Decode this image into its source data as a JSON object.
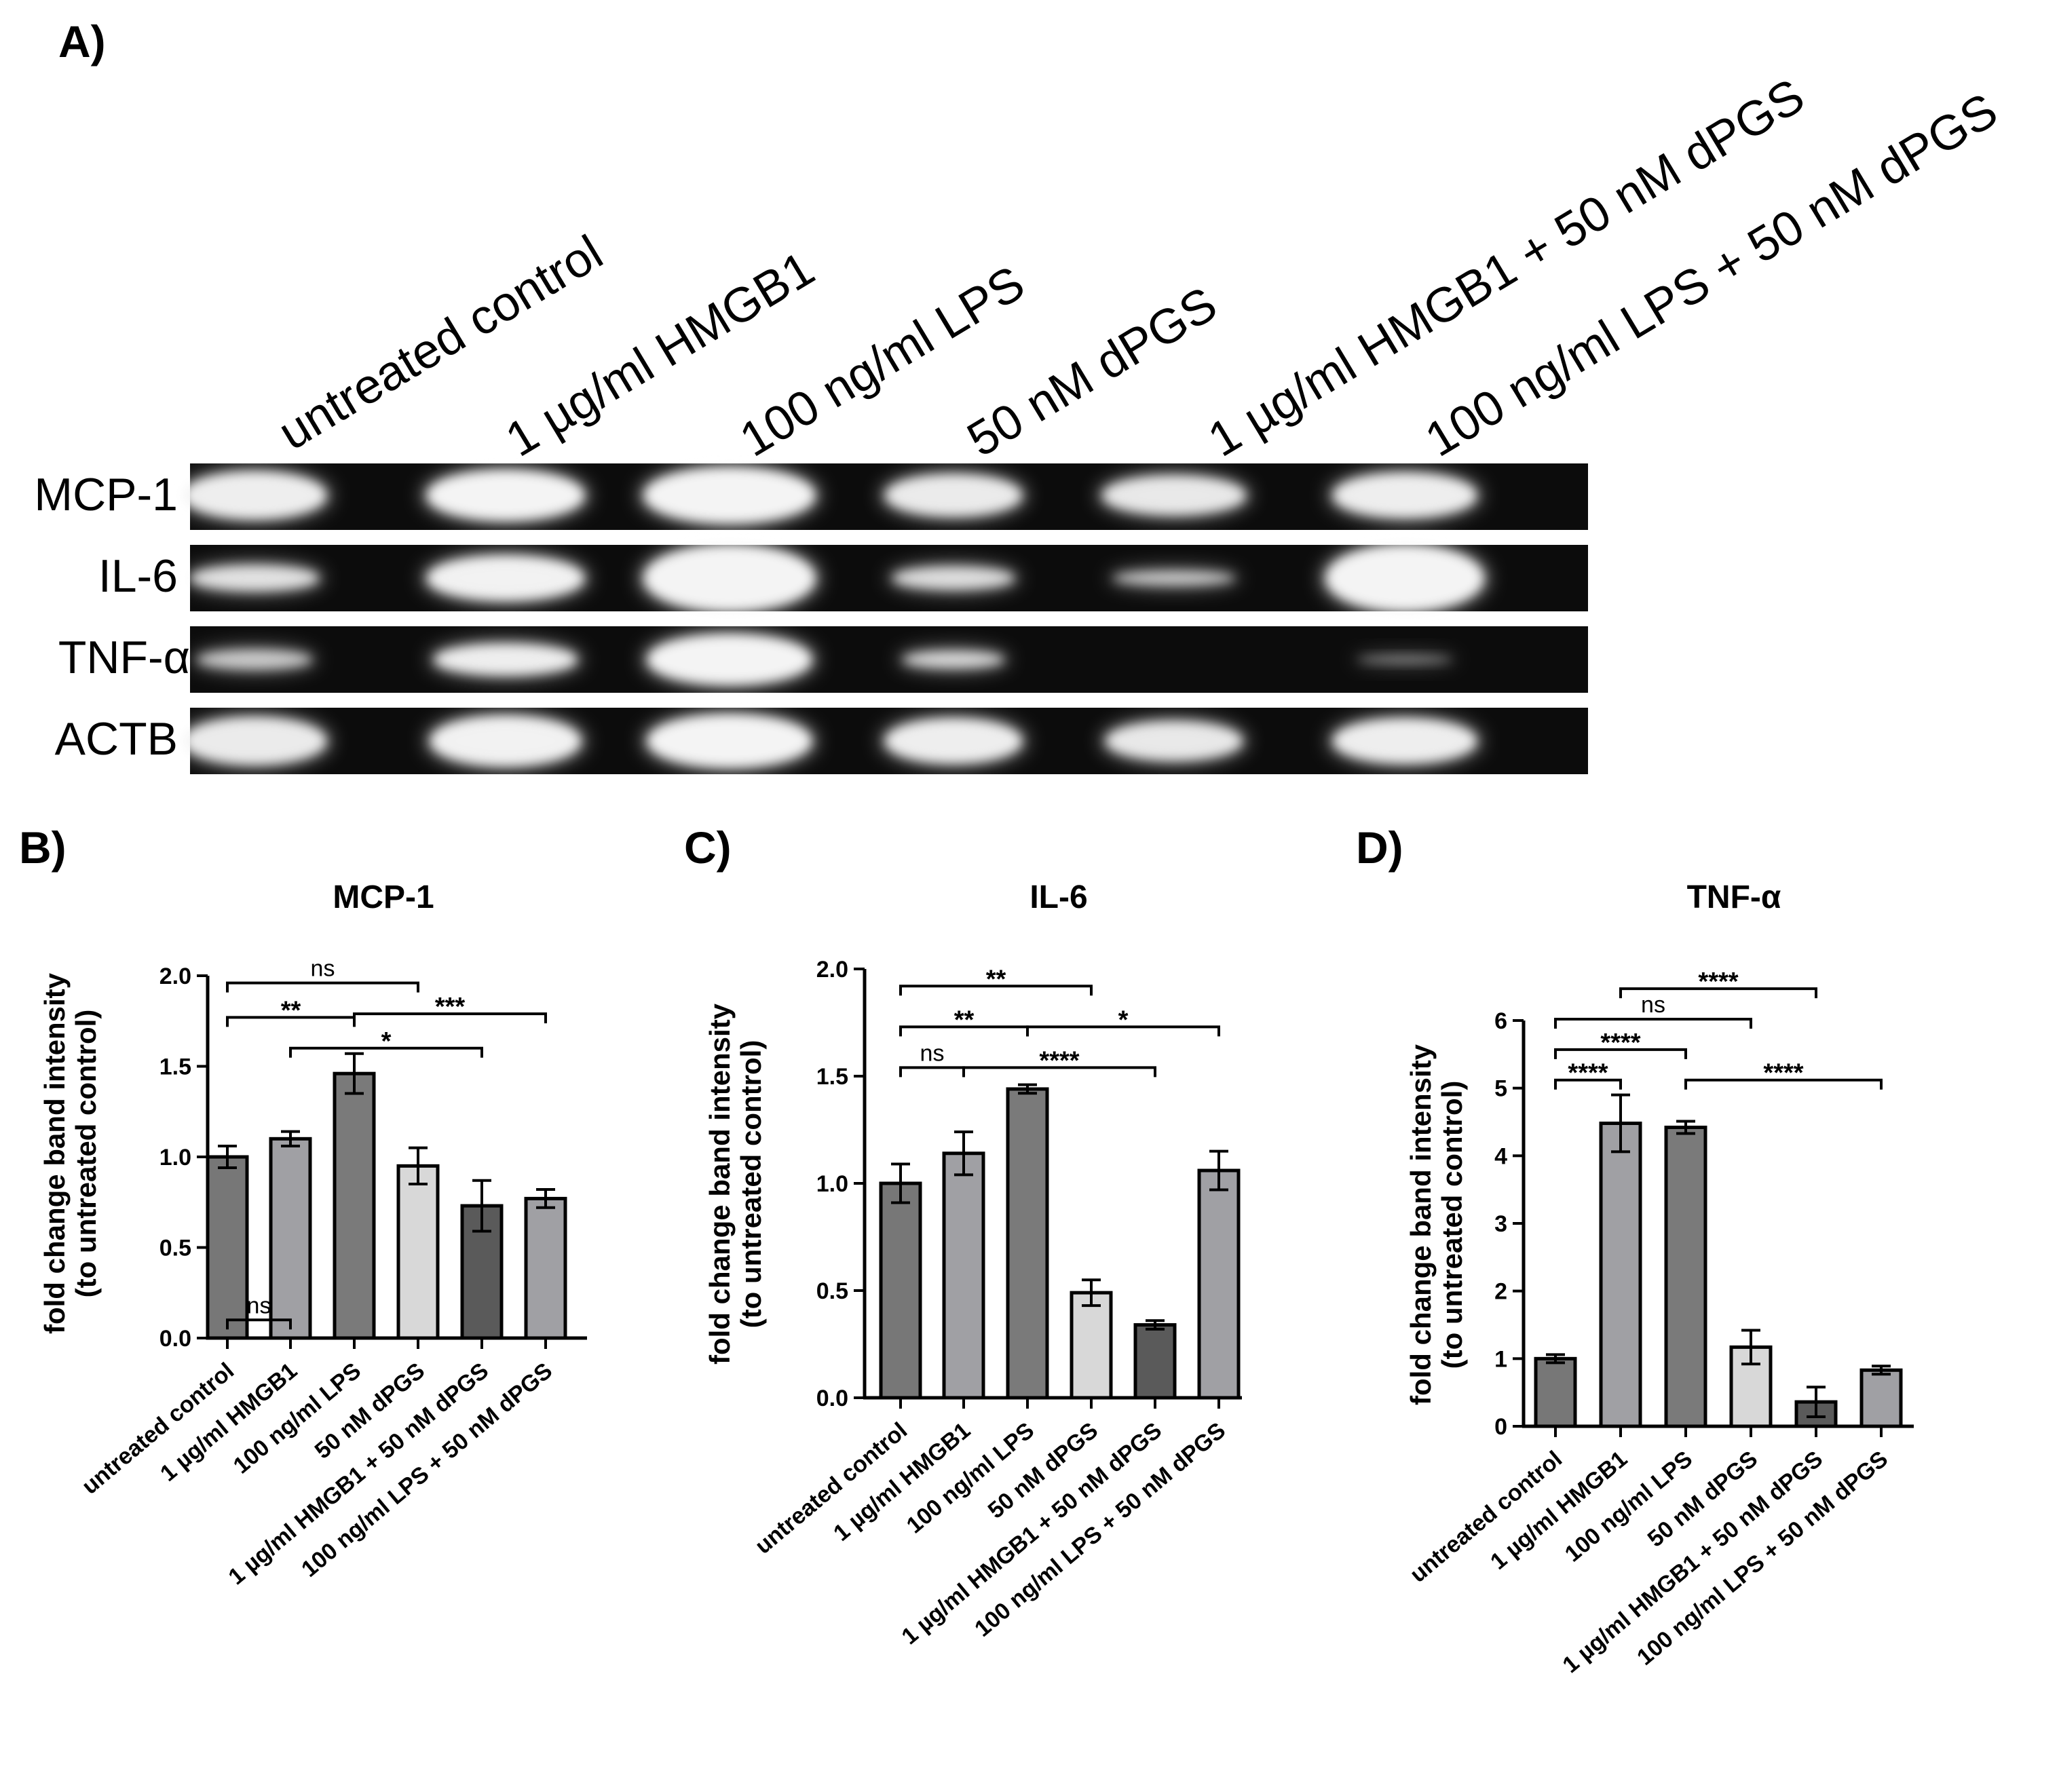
{
  "panel_a": {
    "label": "A)",
    "lanes": [
      "untreated control",
      "1 µg/ml HMGB1",
      "100 ng/ml LPS",
      "50 nM dPGS",
      "1 µg/ml HMGB1 + 50 nM dPGS",
      "100 ng/ml LPS + 50 nM dPGS"
    ],
    "genes": [
      "MCP-1",
      "IL-6",
      "TNF-α",
      "ACTB"
    ]
  },
  "chart_data": [
    {
      "panel_label": "B)",
      "type": "bar",
      "title": "MCP-1",
      "ylabel": [
        "fold change band intensity",
        "(to untreated control)"
      ],
      "xlabel": "",
      "categories": [
        "untreated control",
        "1 µg/ml HMGB1",
        "100 ng/ml LPS",
        "50 nM dPGS",
        "1 µg/ml HMGB1 + 50 nM dPGS",
        "100 ng/ml LPS + 50 nM dPGS"
      ],
      "values": [
        1.0,
        1.1,
        1.46,
        0.95,
        0.73,
        0.77
      ],
      "errors": [
        0.06,
        0.04,
        0.11,
        0.1,
        0.14,
        0.05
      ],
      "ylim": [
        0,
        2.0
      ],
      "yticks": [
        "0.0",
        "0.5",
        "1.0",
        "1.5",
        "2.0"
      ],
      "yticks_values": [
        0,
        0.5,
        1.0,
        1.5,
        2.0
      ],
      "bar_colors": [
        "#777777",
        "#a0a0a4",
        "#7a7a7a",
        "#d8d8d8",
        "#5a5a5a",
        "#a0a0a4"
      ],
      "comparisons": [
        {
          "from": 0,
          "to": 1,
          "label": "ns",
          "level": 0.1
        },
        {
          "from": 0,
          "to": 2,
          "label": "**",
          "level": 1.77
        },
        {
          "from": 0,
          "to": 3,
          "label": "ns",
          "level": 1.96
        },
        {
          "from": 1,
          "to": 4,
          "label": "*",
          "level": 1.6
        },
        {
          "from": 2,
          "to": 5,
          "label": "***",
          "level": 1.79
        }
      ]
    },
    {
      "panel_label": "C)",
      "type": "bar",
      "title": "IL-6",
      "ylabel": [
        "fold change band intensity",
        "(to untreated control)"
      ],
      "xlabel": "",
      "categories": [
        "untreated control",
        "1 µg/ml HMGB1",
        "100 ng/ml LPS",
        "50 nM dPGS",
        "1 µg/ml HMGB1 + 50 nM dPGS",
        "100 ng/ml LPS + 50 nM dPGS"
      ],
      "values": [
        1.0,
        1.14,
        1.44,
        0.49,
        0.34,
        1.06
      ],
      "errors": [
        0.09,
        0.1,
        0.02,
        0.06,
        0.02,
        0.09
      ],
      "ylim": [
        0,
        2.0
      ],
      "yticks": [
        "0.0",
        "0.5",
        "1.0",
        "1.5",
        "2.0"
      ],
      "yticks_values": [
        0,
        0.5,
        1.0,
        1.5,
        2.0
      ],
      "bar_colors": [
        "#777777",
        "#a0a0a4",
        "#7a7a7a",
        "#d8d8d8",
        "#5a5a5a",
        "#a0a0a4"
      ],
      "comparisons": [
        {
          "from": 0,
          "to": 1,
          "label": "ns",
          "level": 1.54
        },
        {
          "from": 0,
          "to": 2,
          "label": "**",
          "level": 1.73
        },
        {
          "from": 0,
          "to": 3,
          "label": "**",
          "level": 1.92
        },
        {
          "from": 1,
          "to": 4,
          "label": "****",
          "level": 1.54
        },
        {
          "from": 2,
          "to": 5,
          "label": "*",
          "level": 1.73
        }
      ]
    },
    {
      "panel_label": "D)",
      "type": "bar",
      "title": "TNF-α",
      "ylabel": [
        "fold change band intensity",
        "(to untreated control)"
      ],
      "xlabel": "",
      "categories": [
        "untreated control",
        "1 µg/ml HMGB1",
        "100 ng/ml LPS",
        "50 nM dPGS",
        "1 µg/ml HMGB1 + 50 nM dPGS",
        "100 ng/ml LPS + 50 nM dPGS"
      ],
      "values": [
        1.0,
        4.48,
        4.42,
        1.17,
        0.36,
        0.83
      ],
      "errors": [
        0.06,
        0.42,
        0.09,
        0.25,
        0.22,
        0.06
      ],
      "ylim": [
        0,
        6
      ],
      "yticks": [
        "0",
        "1",
        "2",
        "3",
        "4",
        "5",
        "6"
      ],
      "yticks_values": [
        0,
        1,
        2,
        3,
        4,
        5,
        6
      ],
      "bar_colors": [
        "#777777",
        "#a0a0a4",
        "#7a7a7a",
        "#d8d8d8",
        "#5a5a5a",
        "#a0a0a4"
      ],
      "comparisons": [
        {
          "from": 0,
          "to": 1,
          "label": "****",
          "level": 5.12
        },
        {
          "from": 0,
          "to": 2,
          "label": "****",
          "level": 5.57
        },
        {
          "from": 0,
          "to": 3,
          "label": "ns",
          "level": 6.02
        },
        {
          "from": 1,
          "to": 4,
          "label": "****",
          "level": 6.47
        },
        {
          "from": 2,
          "to": 5,
          "label": "****",
          "level": 5.12
        }
      ]
    }
  ]
}
